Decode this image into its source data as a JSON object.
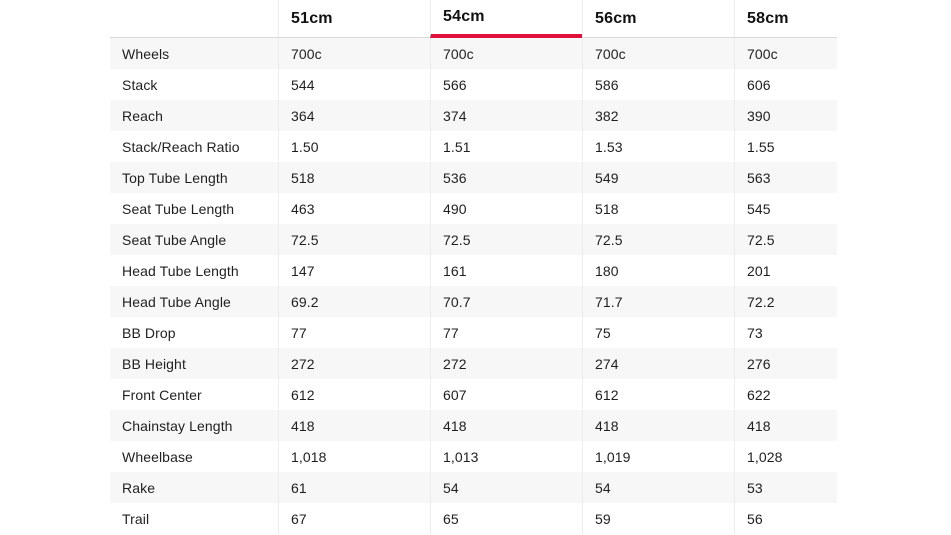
{
  "accent_color": "#e0103a",
  "table": {
    "size_tabs": [
      {
        "label": "51cm",
        "active": false
      },
      {
        "label": "54cm",
        "active": true
      },
      {
        "label": "56cm",
        "active": false
      },
      {
        "label": "58cm",
        "active": false
      }
    ],
    "rows": [
      {
        "label": "Wheels",
        "values": [
          "700c",
          "700c",
          "700c",
          "700c"
        ]
      },
      {
        "label": "Stack",
        "values": [
          "544",
          "566",
          "586",
          "606"
        ]
      },
      {
        "label": "Reach",
        "values": [
          "364",
          "374",
          "382",
          "390"
        ]
      },
      {
        "label": "Stack/Reach Ratio",
        "values": [
          "1.50",
          "1.51",
          "1.53",
          "1.55"
        ]
      },
      {
        "label": "Top Tube Length",
        "values": [
          "518",
          "536",
          "549",
          "563"
        ]
      },
      {
        "label": "Seat Tube Length",
        "values": [
          "463",
          "490",
          "518",
          "545"
        ]
      },
      {
        "label": "Seat Tube Angle",
        "values": [
          "72.5",
          "72.5",
          "72.5",
          "72.5"
        ]
      },
      {
        "label": "Head Tube Length",
        "values": [
          "147",
          "161",
          "180",
          "201"
        ]
      },
      {
        "label": "Head Tube Angle",
        "values": [
          "69.2",
          "70.7",
          "71.7",
          "72.2"
        ]
      },
      {
        "label": "BB Drop",
        "values": [
          "77",
          "77",
          "75",
          "73"
        ]
      },
      {
        "label": "BB Height",
        "values": [
          "272",
          "272",
          "274",
          "276"
        ]
      },
      {
        "label": "Front Center",
        "values": [
          "612",
          "607",
          "612",
          "622"
        ]
      },
      {
        "label": "Chainstay Length",
        "values": [
          "418",
          "418",
          "418",
          "418"
        ]
      },
      {
        "label": "Wheelbase",
        "values": [
          "1,018",
          "1,013",
          "1,019",
          "1,028"
        ]
      },
      {
        "label": "Rake",
        "values": [
          "61",
          "54",
          "54",
          "53"
        ]
      },
      {
        "label": "Trail",
        "values": [
          "67",
          "65",
          "59",
          "56"
        ]
      }
    ]
  }
}
